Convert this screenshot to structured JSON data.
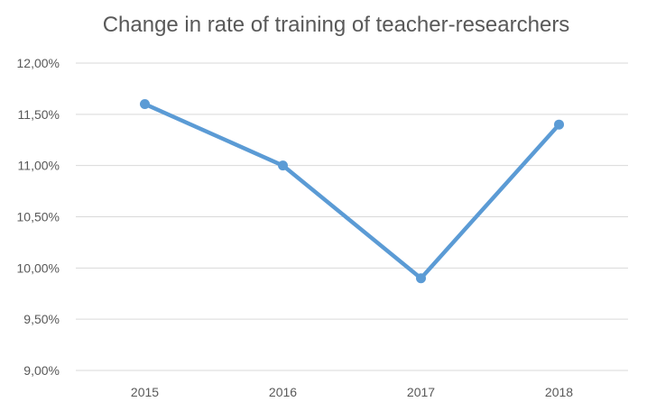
{
  "chart_data": {
    "type": "line",
    "title": "Change in rate of training of teacher-researchers",
    "xlabel": "",
    "ylabel": "",
    "categories": [
      "2015",
      "2016",
      "2017",
      "2018"
    ],
    "series": [
      {
        "values": [
          11.6,
          11.0,
          9.9,
          11.4
        ],
        "color": "#5b9bd5"
      }
    ],
    "ylim": [
      9.0,
      12.0
    ],
    "y_ticks": [
      {
        "value": 12.0,
        "label": "12,00%"
      },
      {
        "value": 11.5,
        "label": "11,50%"
      },
      {
        "value": 11.0,
        "label": "11,00%"
      },
      {
        "value": 10.5,
        "label": "10,50%"
      },
      {
        "value": 10.0,
        "label": "10,00%"
      },
      {
        "value": 9.5,
        "label": "9,50%"
      },
      {
        "value": 9.0,
        "label": "9,00%"
      }
    ],
    "grid": true,
    "legend": "none"
  }
}
